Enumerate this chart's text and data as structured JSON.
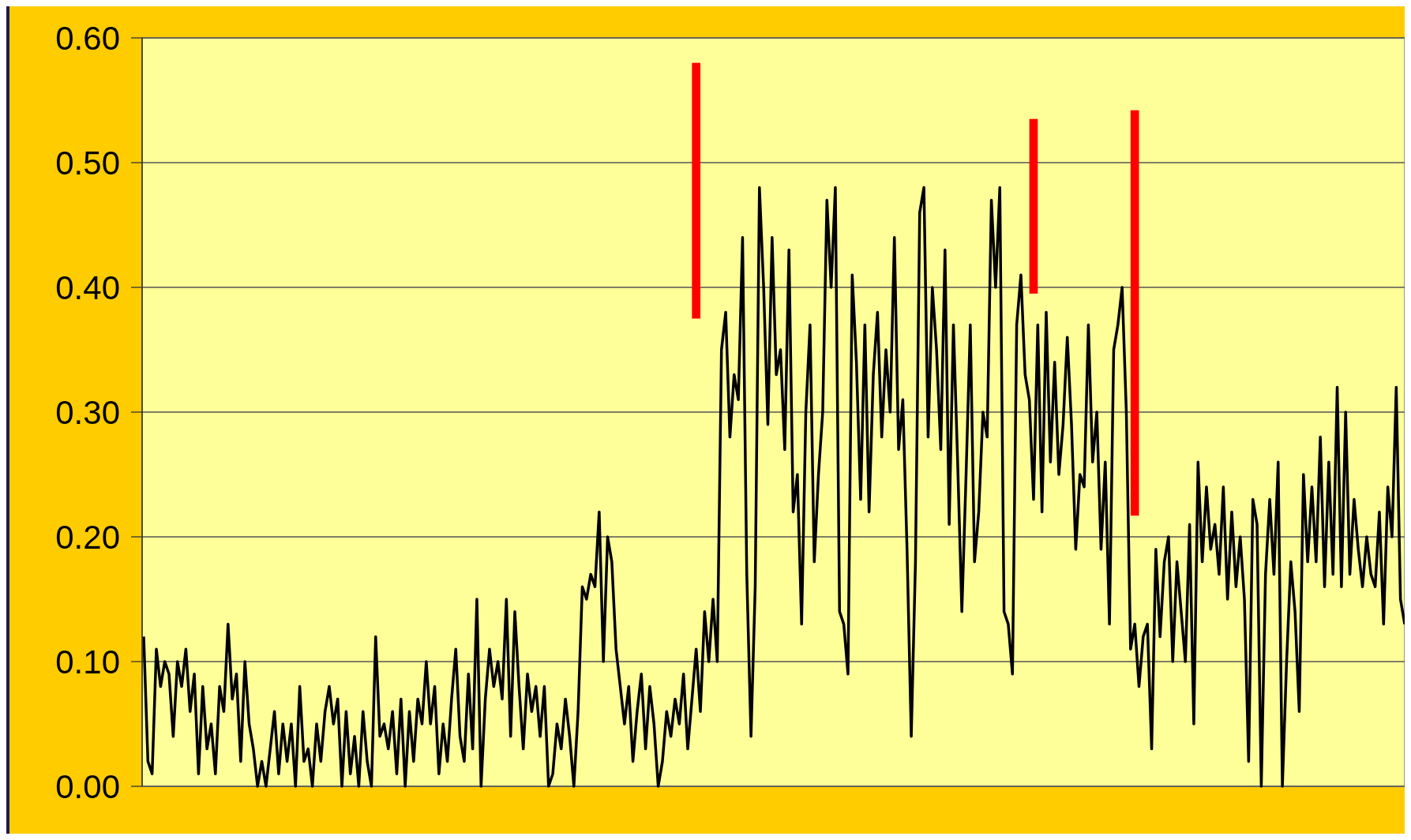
{
  "chart_data": {
    "type": "line",
    "categories": [
      null,
      null,
      null,
      null,
      null,
      null,
      null,
      null,
      null,
      null,
      null,
      null,
      null,
      null,
      null,
      null,
      null,
      null,
      null,
      null,
      null,
      null,
      null,
      null,
      null,
      null,
      null,
      null,
      null,
      null,
      null,
      null,
      null,
      null,
      null,
      null,
      null,
      null,
      null,
      null,
      null,
      null,
      null,
      null,
      null,
      null,
      null,
      null,
      null,
      null,
      null,
      null,
      null,
      null,
      null,
      null,
      null,
      null,
      null,
      null,
      null,
      null,
      null,
      null,
      null,
      null,
      null,
      null,
      null,
      null,
      null,
      null,
      null,
      null,
      null,
      null,
      null,
      null,
      null,
      null,
      null,
      null,
      null,
      null,
      null,
      null,
      null,
      null,
      null,
      null,
      null,
      null,
      null,
      null,
      null,
      null,
      null,
      null,
      null,
      null,
      null,
      null,
      null,
      null,
      null,
      null,
      null,
      null,
      null,
      null,
      null,
      null,
      null,
      null,
      null,
      null,
      null,
      null,
      null,
      null,
      null,
      null,
      null,
      null,
      null,
      null,
      null,
      null,
      null,
      null,
      null,
      null,
      null,
      null,
      null,
      null,
      null,
      null,
      null,
      null,
      null,
      null,
      null,
      null,
      null,
      null,
      null,
      null,
      null,
      null,
      null,
      null,
      null,
      null,
      null,
      null,
      null,
      null,
      null,
      null,
      null,
      null,
      null,
      null,
      null,
      null,
      null,
      null,
      null,
      null,
      null,
      null,
      null,
      null,
      null,
      null,
      null,
      null,
      null,
      null,
      null,
      null,
      null,
      null,
      null,
      null,
      null,
      null,
      null,
      null,
      null,
      null,
      null,
      null,
      null,
      null,
      null,
      null,
      null,
      null,
      null,
      null,
      null,
      null,
      null,
      null,
      null,
      null,
      null,
      null,
      null,
      null,
      null,
      null,
      null,
      null,
      null,
      null,
      null,
      null,
      null,
      null,
      null,
      null,
      null,
      null,
      null,
      null,
      null,
      null,
      null,
      null,
      null,
      null,
      null,
      null,
      null,
      null,
      null,
      null,
      null,
      null,
      null,
      null,
      null,
      null,
      null,
      null,
      null,
      null,
      null,
      null,
      null,
      null,
      null,
      null,
      null,
      null,
      null,
      null,
      null,
      null,
      null,
      null,
      null,
      null,
      null,
      null,
      null,
      null,
      null,
      null,
      null,
      null,
      null,
      null,
      null,
      null,
      null,
      null,
      null,
      null,
      null,
      null,
      null,
      null,
      null,
      null,
      null,
      null,
      null,
      null,
      null,
      null,
      null,
      null,
      null,
      null,
      null,
      null
    ],
    "series": [
      {
        "color": "#000000",
        "values": [
          0.12,
          0.02,
          0.01,
          0.11,
          0.08,
          0.1,
          0.09,
          0.04,
          0.1,
          0.08,
          0.11,
          0.06,
          0.09,
          0.01,
          0.08,
          0.03,
          0.05,
          0.01,
          0.08,
          0.06,
          0.13,
          0.07,
          0.09,
          0.02,
          0.1,
          0.05,
          0.03,
          0.0,
          0.02,
          0.0,
          0.03,
          0.06,
          0.01,
          0.05,
          0.02,
          0.05,
          0.0,
          0.08,
          0.02,
          0.03,
          0.0,
          0.05,
          0.02,
          0.06,
          0.08,
          0.05,
          0.07,
          0.0,
          0.06,
          0.01,
          0.04,
          0.0,
          0.06,
          0.02,
          0.0,
          0.12,
          0.04,
          0.05,
          0.03,
          0.06,
          0.01,
          0.07,
          0.0,
          0.06,
          0.02,
          0.07,
          0.05,
          0.1,
          0.05,
          0.08,
          0.01,
          0.05,
          0.02,
          0.07,
          0.11,
          0.04,
          0.02,
          0.09,
          0.03,
          0.15,
          0.0,
          0.07,
          0.11,
          0.08,
          0.1,
          0.07,
          0.15,
          0.04,
          0.14,
          0.08,
          0.03,
          0.09,
          0.06,
          0.08,
          0.04,
          0.08,
          0.0,
          0.01,
          0.05,
          0.03,
          0.07,
          0.04,
          0.0,
          0.06,
          0.16,
          0.15,
          0.17,
          0.16,
          0.22,
          0.1,
          0.2,
          0.18,
          0.11,
          0.08,
          0.05,
          0.08,
          0.02,
          0.06,
          0.09,
          0.03,
          0.08,
          0.05,
          0.0,
          0.02,
          0.06,
          0.04,
          0.07,
          0.05,
          0.09,
          0.03,
          0.07,
          0.11,
          0.06,
          0.14,
          0.1,
          0.15,
          0.1,
          0.35,
          0.38,
          0.28,
          0.33,
          0.31,
          0.44,
          0.17,
          0.04,
          0.16,
          0.48,
          0.4,
          0.29,
          0.44,
          0.33,
          0.35,
          0.27,
          0.43,
          0.22,
          0.25,
          0.13,
          0.3,
          0.37,
          0.18,
          0.25,
          0.3,
          0.47,
          0.4,
          0.48,
          0.14,
          0.13,
          0.09,
          0.41,
          0.34,
          0.23,
          0.37,
          0.22,
          0.33,
          0.38,
          0.28,
          0.35,
          0.3,
          0.44,
          0.27,
          0.31,
          0.19,
          0.04,
          0.18,
          0.46,
          0.48,
          0.28,
          0.4,
          0.35,
          0.27,
          0.43,
          0.21,
          0.37,
          0.26,
          0.14,
          0.25,
          0.37,
          0.18,
          0.22,
          0.3,
          0.28,
          0.47,
          0.4,
          0.48,
          0.14,
          0.13,
          0.09,
          0.37,
          0.41,
          0.33,
          0.31,
          0.23,
          0.37,
          0.22,
          0.38,
          0.26,
          0.34,
          0.25,
          0.29,
          0.36,
          0.29,
          0.19,
          0.25,
          0.24,
          0.37,
          0.26,
          0.3,
          0.19,
          0.26,
          0.13,
          0.35,
          0.37,
          0.4,
          0.3,
          0.11,
          0.13,
          0.08,
          0.12,
          0.13,
          0.03,
          0.19,
          0.12,
          0.18,
          0.2,
          0.1,
          0.18,
          0.14,
          0.1,
          0.21,
          0.05,
          0.26,
          0.18,
          0.24,
          0.19,
          0.21,
          0.17,
          0.24,
          0.15,
          0.22,
          0.16,
          0.2,
          0.15,
          0.02,
          0.23,
          0.21,
          0.0,
          0.17,
          0.23,
          0.17,
          0.26,
          0.0,
          0.1,
          0.18,
          0.14,
          0.06,
          0.25,
          0.18,
          0.24,
          0.18,
          0.28,
          0.16,
          0.26,
          0.17,
          0.32,
          0.16,
          0.3,
          0.17,
          0.23,
          0.19,
          0.16,
          0.2,
          0.17,
          0.16,
          0.22,
          0.13,
          0.24,
          0.2,
          0.32,
          0.15,
          0.13
        ]
      },
      {
        "type": "bar",
        "color": "#ff0000",
        "base": [
          null,
          null,
          null,
          null,
          null,
          null,
          null,
          null,
          null,
          null,
          null,
          null,
          null,
          null,
          null,
          null,
          null,
          null,
          null,
          null,
          null,
          null,
          null,
          null,
          null,
          null,
          null,
          null,
          null,
          null,
          null,
          null,
          null,
          null,
          null,
          null,
          null,
          null,
          null,
          null,
          null,
          null,
          null,
          null,
          null,
          null,
          null,
          null,
          null,
          null,
          null,
          null,
          null,
          null,
          null,
          null,
          null,
          null,
          null,
          null,
          null,
          null,
          null,
          null,
          null,
          null,
          null,
          null,
          null,
          null,
          null,
          null,
          null,
          null,
          null,
          null,
          null,
          null,
          null,
          null,
          null,
          null,
          null,
          null,
          null,
          null,
          null,
          null,
          null,
          null,
          null,
          null,
          null,
          null,
          null,
          null,
          null,
          null,
          null,
          null,
          null,
          null,
          null,
          null,
          null,
          null,
          null,
          null,
          null,
          null,
          null,
          null,
          null,
          null,
          null,
          null,
          null,
          null,
          null,
          null,
          null,
          null,
          null,
          null,
          null,
          null,
          null,
          null,
          null,
          null,
          null,
          0.375,
          null,
          null,
          null,
          null,
          null,
          null,
          null,
          null,
          null,
          null,
          null,
          null,
          null,
          null,
          null,
          null,
          null,
          null,
          null,
          null,
          null,
          null,
          null,
          null,
          null,
          null,
          null,
          null,
          null,
          null,
          null,
          null,
          null,
          null,
          null,
          null,
          null,
          null,
          null,
          null,
          null,
          null,
          null,
          null,
          null,
          null,
          null,
          null,
          null,
          null,
          null,
          null,
          null,
          null,
          null,
          null,
          null,
          null,
          null,
          null,
          null,
          null,
          null,
          null,
          null,
          null,
          null,
          null,
          null,
          null,
          null,
          null,
          null,
          null,
          null,
          null,
          null,
          null,
          null,
          0.395,
          null,
          null,
          null,
          null,
          null,
          null,
          null,
          null,
          null,
          null,
          null,
          null,
          null,
          null,
          null,
          null,
          null,
          null,
          null,
          null,
          null,
          null,
          null,
          0.217,
          null,
          null,
          null,
          null,
          null,
          null,
          null,
          null,
          null,
          null,
          null,
          null,
          null,
          null,
          null,
          null,
          null,
          null,
          null,
          null,
          null,
          null,
          null,
          null,
          null,
          null,
          null,
          null,
          null,
          null,
          null,
          null,
          null,
          null,
          null,
          null,
          null,
          null,
          null,
          null,
          null,
          null,
          null,
          null,
          null,
          null,
          null,
          null,
          null,
          null,
          null,
          null,
          null,
          null,
          null,
          null,
          null,
          null,
          null,
          null,
          null,
          null,
          null,
          null
        ],
        "values": [
          null,
          null,
          null,
          null,
          null,
          null,
          null,
          null,
          null,
          null,
          null,
          null,
          null,
          null,
          null,
          null,
          null,
          null,
          null,
          null,
          null,
          null,
          null,
          null,
          null,
          null,
          null,
          null,
          null,
          null,
          null,
          null,
          null,
          null,
          null,
          null,
          null,
          null,
          null,
          null,
          null,
          null,
          null,
          null,
          null,
          null,
          null,
          null,
          null,
          null,
          null,
          null,
          null,
          null,
          null,
          null,
          null,
          null,
          null,
          null,
          null,
          null,
          null,
          null,
          null,
          null,
          null,
          null,
          null,
          null,
          null,
          null,
          null,
          null,
          null,
          null,
          null,
          null,
          null,
          null,
          null,
          null,
          null,
          null,
          null,
          null,
          null,
          null,
          null,
          null,
          null,
          null,
          null,
          null,
          null,
          null,
          null,
          null,
          null,
          null,
          null,
          null,
          null,
          null,
          null,
          null,
          null,
          null,
          null,
          null,
          null,
          null,
          null,
          null,
          null,
          null,
          null,
          null,
          null,
          null,
          null,
          null,
          null,
          null,
          null,
          null,
          null,
          null,
          null,
          null,
          null,
          0.205,
          null,
          null,
          null,
          null,
          null,
          null,
          null,
          null,
          null,
          null,
          null,
          null,
          null,
          null,
          null,
          null,
          null,
          null,
          null,
          null,
          null,
          null,
          null,
          null,
          null,
          null,
          null,
          null,
          null,
          null,
          null,
          null,
          null,
          null,
          null,
          null,
          null,
          null,
          null,
          null,
          null,
          null,
          null,
          null,
          null,
          null,
          null,
          null,
          null,
          null,
          null,
          null,
          null,
          null,
          null,
          null,
          null,
          null,
          null,
          null,
          null,
          null,
          null,
          null,
          null,
          null,
          null,
          null,
          null,
          null,
          null,
          null,
          null,
          null,
          null,
          null,
          null,
          null,
          null,
          0.14,
          null,
          null,
          null,
          null,
          null,
          null,
          null,
          null,
          null,
          null,
          null,
          null,
          null,
          null,
          null,
          null,
          null,
          null,
          null,
          null,
          null,
          null,
          null,
          0.325,
          null,
          null,
          null,
          null,
          null,
          null,
          null,
          null,
          null,
          null,
          null,
          null,
          null,
          null,
          null,
          null,
          null,
          null,
          null,
          null,
          null,
          null,
          null,
          null,
          null,
          null,
          null,
          null,
          null,
          null,
          null,
          null,
          null,
          null,
          null,
          null,
          null,
          null,
          null,
          null,
          null,
          null,
          null,
          null,
          null,
          null,
          null,
          null,
          null,
          null,
          null,
          null,
          null,
          null,
          null,
          null,
          null,
          null,
          null,
          null,
          null,
          null,
          null,
          null
        ]
      }
    ],
    "ylim": [
      0,
      0.6
    ],
    "yticks": [
      {
        "value": 0,
        "label": "0.00"
      },
      {
        "value": 0.1,
        "label": "0.10"
      },
      {
        "value": 0.2,
        "label": "0.20"
      },
      {
        "value": 0.3,
        "label": "0.30"
      },
      {
        "value": 0.4,
        "label": "0.40"
      },
      {
        "value": 0.5,
        "label": "0.50"
      },
      {
        "value": 0.6,
        "label": "0.60"
      }
    ],
    "grid": "y",
    "tick_labels": "y",
    "marker": "none",
    "line_style": "solid"
  }
}
